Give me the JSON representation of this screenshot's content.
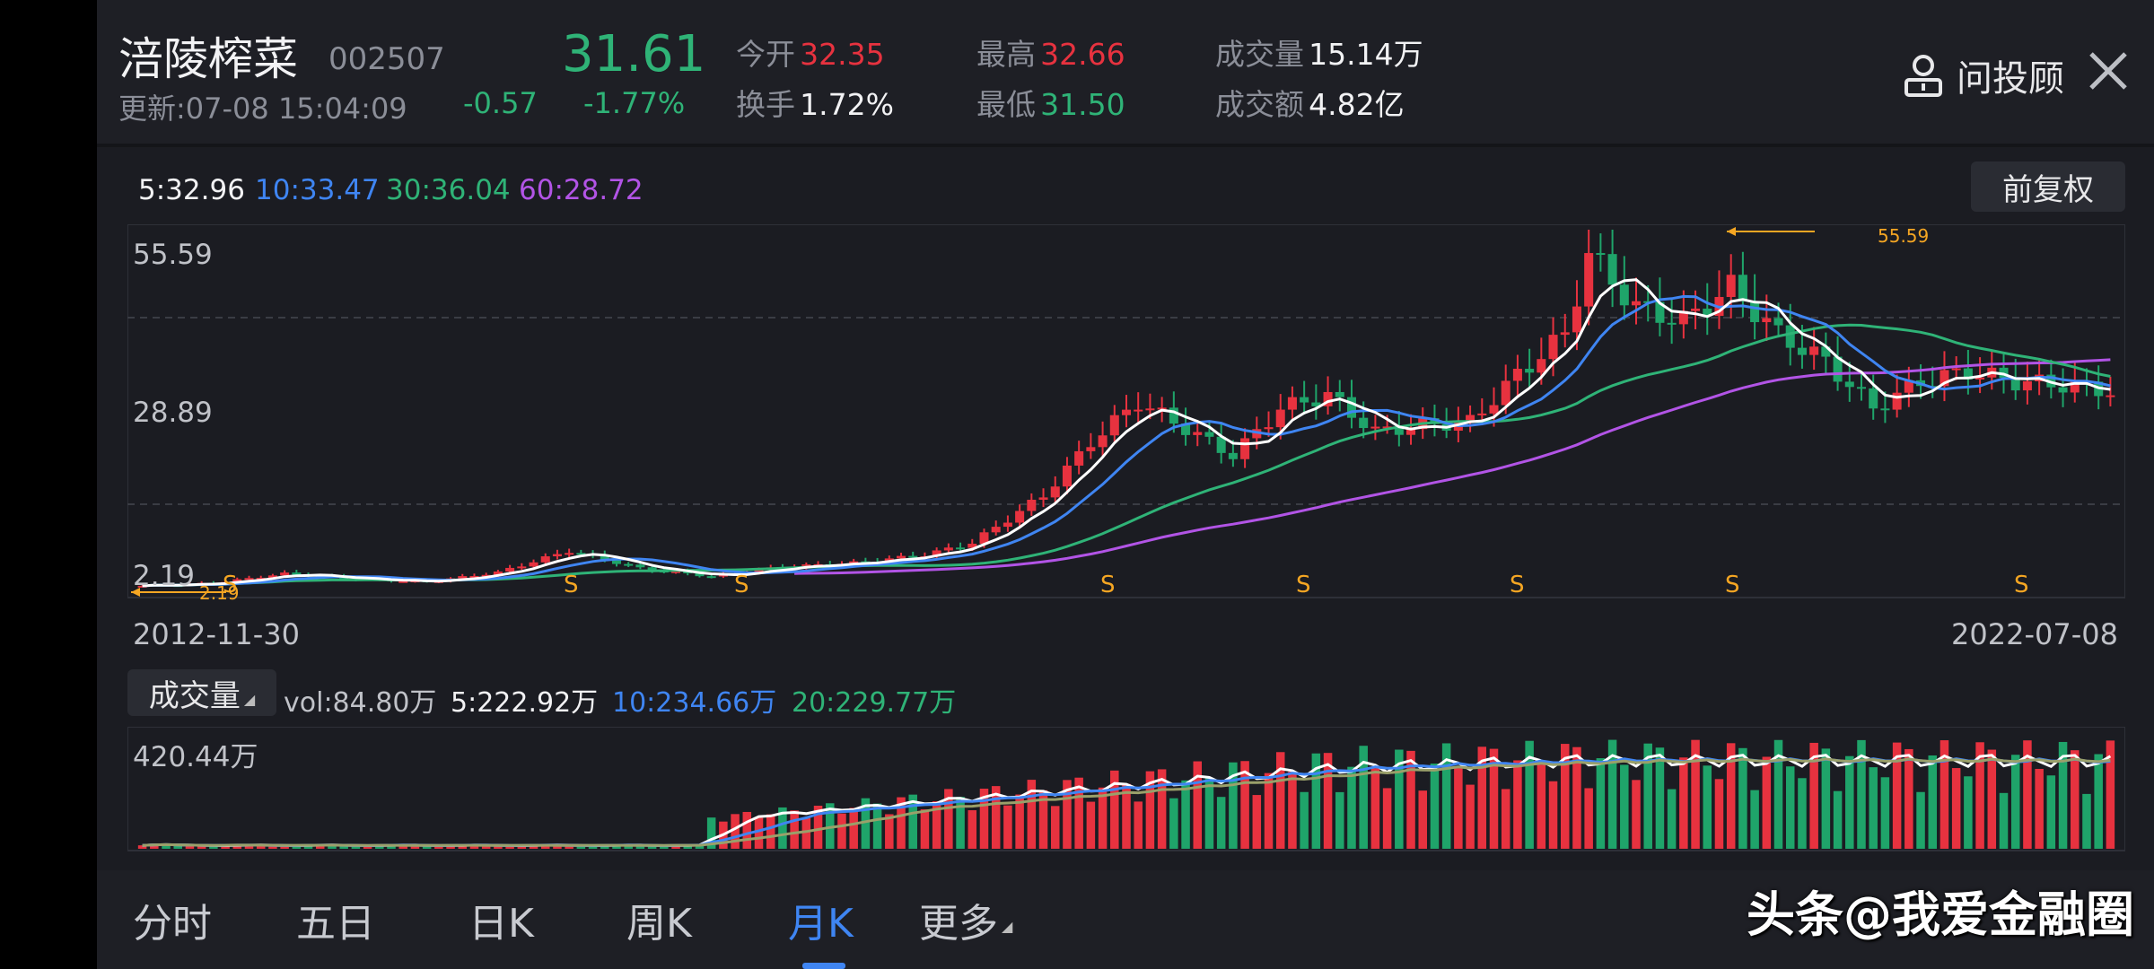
{
  "header": {
    "name": "涪陵榨菜",
    "code": "002507",
    "price": "31.61",
    "update": "更新:07-08 15:04:09",
    "change": "-0.57",
    "change_pct": "-1.77%",
    "stats": [
      {
        "label": "今开",
        "value": "32.35",
        "color": "#e7323f"
      },
      {
        "label": "换手",
        "value": "1.72%",
        "color": "#f2f2f4"
      },
      {
        "label": "最高",
        "value": "32.66",
        "color": "#e7323f"
      },
      {
        "label": "最低",
        "value": "31.50",
        "color": "#2fb377"
      },
      {
        "label": "成交量",
        "value": "15.14万",
        "color": "#f2f2f4"
      },
      {
        "label": "成交额",
        "value": "4.82亿",
        "color": "#f2f2f4"
      }
    ],
    "advisor_label": "问投顾",
    "advisor_icon": "user-icon",
    "close_icon": "close-icon"
  },
  "kline": {
    "adjust_button": "前复权",
    "ma": [
      {
        "label": "5:32.96",
        "color": "#f2f2f4"
      },
      {
        "label": "10:33.47",
        "color": "#3f85f2"
      },
      {
        "label": "30:36.04",
        "color": "#2fb377"
      },
      {
        "label": "60:28.72",
        "color": "#b254e6"
      }
    ],
    "y_top": "55.59",
    "y_mid": "28.89",
    "y_bottom": "2.19",
    "max_mark": "55.59",
    "min_mark": "2.19",
    "signal": "S",
    "date_start": "2012-11-30",
    "date_end": "2022-07-08"
  },
  "volume": {
    "button": "成交量",
    "values": [
      {
        "label": "vol:84.80万",
        "color": "#c0c2c8"
      },
      {
        "label": "5:222.92万",
        "color": "#f2f2f4"
      },
      {
        "label": "10:234.66万",
        "color": "#3f85f2"
      },
      {
        "label": "20:229.77万",
        "color": "#2fb377"
      }
    ],
    "max_label": "420.44万"
  },
  "tabs": [
    "分时",
    "五日",
    "日K",
    "周K",
    "月K",
    "更多"
  ],
  "active_tab": "月K",
  "watermark": "头条@我爱金融圈",
  "chart_data": {
    "type": "candlestick",
    "series_note": "月K",
    "x_start": "2012-11-30",
    "x_end": "2022-07-08",
    "ylim": [
      2.19,
      55.59
    ],
    "close_points": [
      [
        0,
        2.6
      ],
      [
        6,
        3.0
      ],
      [
        12,
        4.4
      ],
      [
        18,
        3.6
      ],
      [
        24,
        3.2
      ],
      [
        30,
        4.6
      ],
      [
        36,
        7.8
      ],
      [
        42,
        5.2
      ],
      [
        48,
        4.0
      ],
      [
        54,
        5.4
      ],
      [
        60,
        6.0
      ],
      [
        66,
        7.2
      ],
      [
        70,
        9.0
      ],
      [
        76,
        16.0
      ],
      [
        80,
        24.0
      ],
      [
        84,
        30.0
      ],
      [
        88,
        26.0
      ],
      [
        92,
        22.0
      ],
      [
        96,
        29.0
      ],
      [
        100,
        31.0
      ],
      [
        104,
        25.5
      ],
      [
        108,
        26.5
      ],
      [
        112,
        27.0
      ],
      [
        116,
        34.0
      ],
      [
        120,
        40.0
      ],
      [
        122,
        52.0
      ],
      [
        126,
        44.0
      ],
      [
        130,
        42.0
      ],
      [
        134,
        47.0
      ],
      [
        138,
        40.0
      ],
      [
        142,
        36.0
      ],
      [
        146,
        29.0
      ],
      [
        150,
        33.0
      ],
      [
        154,
        34.5
      ],
      [
        158,
        33.0
      ],
      [
        162,
        32.5
      ],
      [
        166,
        31.6
      ]
    ],
    "volume_max": "420.44万"
  }
}
